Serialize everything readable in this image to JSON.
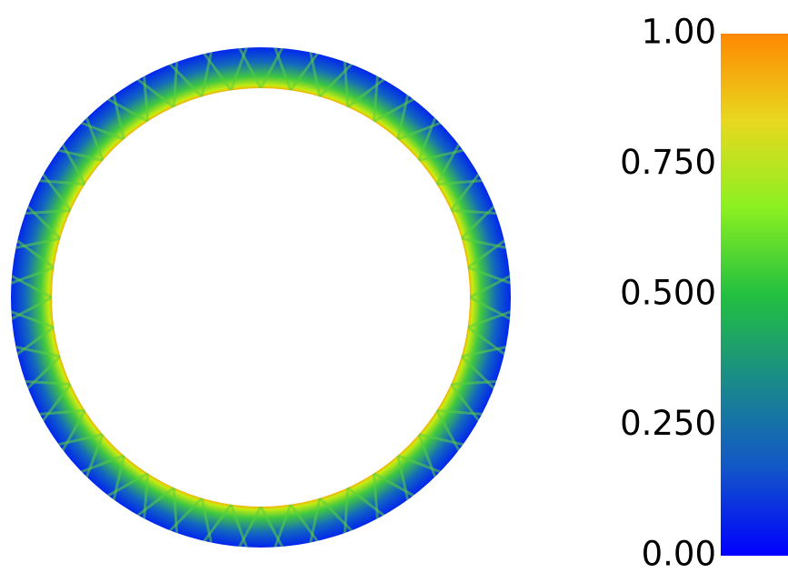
{
  "chart_data": {
    "type": "colormap",
    "clim": [
      0,
      1
    ],
    "ticks": [
      {
        "value": 1,
        "label": "1.00"
      },
      {
        "value": 0.75,
        "label": "0.750"
      },
      {
        "value": 0.5,
        "label": "0.500"
      },
      {
        "value": 0.25,
        "label": "0.250"
      },
      {
        "value": 0,
        "label": "0.00"
      }
    ],
    "colors": [
      "#0000ff",
      "#1256c8",
      "#1a8a8a",
      "#22c040",
      "#8cf020",
      "#e8d820",
      "#ff8800"
    ]
  }
}
